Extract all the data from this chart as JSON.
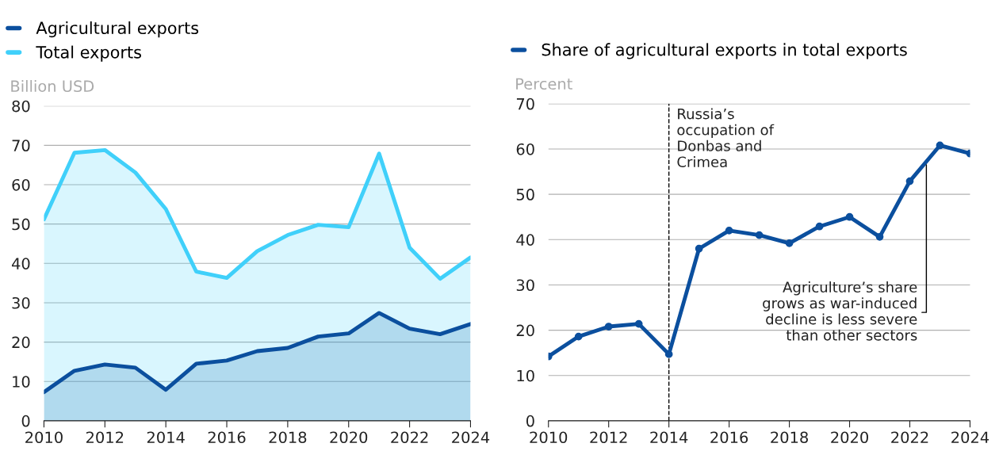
{
  "chart_data": [
    {
      "type": "area",
      "ylabel": "Billion USD",
      "x": [
        2010,
        2011,
        2012,
        2013,
        2014,
        2015,
        2016,
        2017,
        2018,
        2019,
        2020,
        2021,
        2022,
        2023,
        2024
      ],
      "series": [
        {
          "name": "Agricultural exports",
          "color": "#0b4f9e",
          "values": [
            7.3,
            12.7,
            14.3,
            13.5,
            7.9,
            14.5,
            15.3,
            17.7,
            18.5,
            21.4,
            22.2,
            27.4,
            23.4,
            22.0,
            24.6
          ]
        },
        {
          "name": "Total exports",
          "color": "#40d0fa",
          "values": [
            51.2,
            68.1,
            68.8,
            63.1,
            53.8,
            37.9,
            36.3,
            43.1,
            47.2,
            49.8,
            49.2,
            67.9,
            44.0,
            36.1,
            41.5
          ]
        }
      ],
      "xlim": [
        2010,
        2024
      ],
      "xticks": [
        2010,
        2012,
        2014,
        2016,
        2018,
        2020,
        2022,
        2024
      ],
      "ylim": [
        0,
        80
      ],
      "yticks": [
        0,
        10,
        20,
        30,
        40,
        50,
        60,
        70,
        80
      ],
      "grid": "y",
      "legend": "top left"
    },
    {
      "type": "line",
      "ylabel": "Percent",
      "x": [
        2010,
        2011,
        2012,
        2013,
        2014,
        2015,
        2016,
        2017,
        2018,
        2019,
        2020,
        2021,
        2022,
        2023,
        2024
      ],
      "series": [
        {
          "name": "Share of agricultural exports in total exports",
          "color": "#0b4f9e",
          "values": [
            14.2,
            18.6,
            20.8,
            21.4,
            14.7,
            38.0,
            42.0,
            41.0,
            39.2,
            42.9,
            45.0,
            40.6,
            52.9,
            60.8,
            59.0
          ]
        }
      ],
      "xlim": [
        2010,
        2024
      ],
      "xticks": [
        2010,
        2012,
        2014,
        2016,
        2018,
        2020,
        2022,
        2024
      ],
      "ylim": [
        0,
        70
      ],
      "yticks": [
        0,
        10,
        20,
        30,
        40,
        50,
        60,
        70
      ],
      "grid": "y",
      "legend": "top left",
      "marker": "circle",
      "ref_lines": [
        {
          "axis": "x",
          "value": 2014,
          "label": "Russia’s\noccupation of\nDonbas and\nCrimea",
          "color": "#000000",
          "line_style": "dashed"
        }
      ],
      "annotations": [
        {
          "text": "Agriculture’s share\ngrows as war-induced\ndecline is less severe\nthan other sectors",
          "x": 2022.55,
          "y": 56.5
        }
      ]
    }
  ]
}
